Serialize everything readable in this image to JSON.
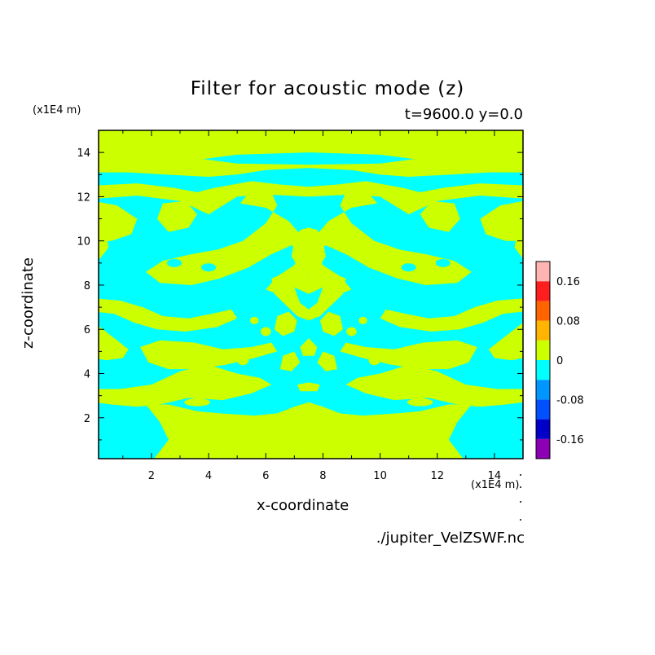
{
  "chart_data": {
    "type": "heatmap",
    "title": "Filter for acoustic mode (z)",
    "subtitle": "t=9600.0 y=0.0",
    "xlabel": "x-coordinate",
    "ylabel": "z-coordinate",
    "x_unit": "(x1E4 m)",
    "y_unit": "(x1E4 m)",
    "xlim": [
      0.15,
      15
    ],
    "ylim": [
      0.15,
      15
    ],
    "xticks": [
      2,
      4,
      6,
      8,
      10,
      12,
      14
    ],
    "yticks": [
      2,
      4,
      6,
      8,
      10,
      12,
      14
    ],
    "colorbar": {
      "levels": [
        -0.2,
        -0.16,
        -0.12,
        -0.08,
        -0.04,
        0,
        0.04,
        0.08,
        0.12,
        0.16,
        0.2
      ],
      "colors": [
        "#8b00b3",
        "#0000c8",
        "#0050ff",
        "#0096ff",
        "#00ffff",
        "#ccff00",
        "#ffb400",
        "#ff6400",
        "#ff1e1e",
        "#ffb4b4"
      ],
      "tick_labels": [
        "-0.16",
        "-0.08",
        "0",
        "0.08",
        "0.16"
      ],
      "tick_values": [
        -0.16,
        -0.08,
        0,
        0.08,
        0.16
      ]
    },
    "field_summary": "Contour regions near zero: positive (yellow-green, 0 to 0.04) and negative (cyan, -0.04 to 0), nearly symmetric about x=7.5."
  },
  "source_file": "./jupiter_VelZSWF.nc",
  "colors": {
    "positive": "#ccff00",
    "negative": "#00ffff",
    "frame": "#000000"
  }
}
